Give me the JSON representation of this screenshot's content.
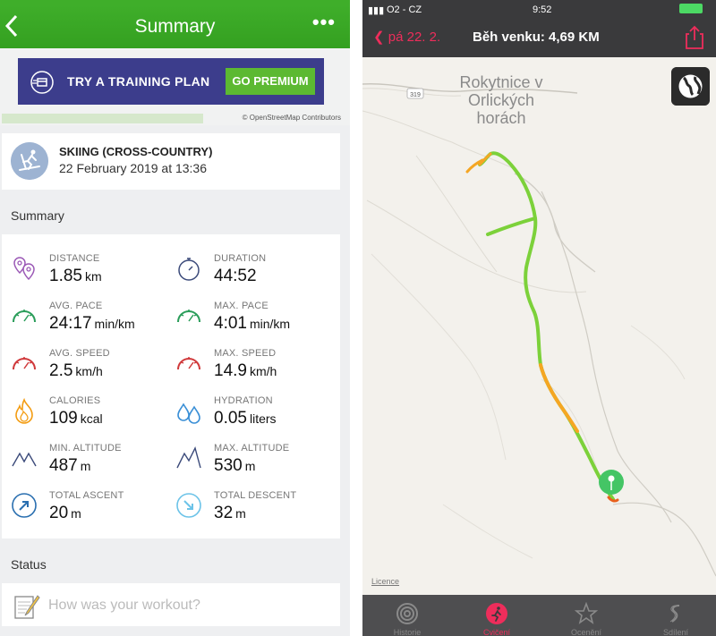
{
  "left": {
    "header": {
      "title": "Summary",
      "more_label": "•••"
    },
    "banner": {
      "text": "TRY A TRAINING PLAN",
      "button_label": "GO PREMIUM",
      "attribution": "© OpenStreetMap Contributors"
    },
    "activity": {
      "type": "SKIING (CROSS-COUNTRY)",
      "date": "22 February 2019 at 13:36"
    },
    "summary_title": "Summary",
    "stats": [
      {
        "label": "DISTANCE",
        "value": "1.85",
        "unit": "km",
        "icon": "location-pins-icon"
      },
      {
        "label": "DURATION",
        "value": "44:52",
        "unit": "",
        "icon": "stopwatch-icon"
      },
      {
        "label": "AVG. PACE",
        "value": "24:17",
        "unit": "min/km",
        "icon": "green-gauge-icon"
      },
      {
        "label": "MAX. PACE",
        "value": "4:01",
        "unit": "min/km",
        "icon": "green-gauge-icon"
      },
      {
        "label": "AVG. SPEED",
        "value": "2.5",
        "unit": "km/h",
        "icon": "red-gauge-icon"
      },
      {
        "label": "MAX. SPEED",
        "value": "14.9",
        "unit": "km/h",
        "icon": "red-gauge-icon"
      },
      {
        "label": "CALORIES",
        "value": "109",
        "unit": "kcal",
        "icon": "flame-icon"
      },
      {
        "label": "HYDRATION",
        "value": "0.05",
        "unit": "liters",
        "icon": "water-drops-icon"
      },
      {
        "label": "MIN. ALTITUDE",
        "value": "487",
        "unit": "m",
        "icon": "mountain-icon"
      },
      {
        "label": "MAX. ALTITUDE",
        "value": "530",
        "unit": "m",
        "icon": "mountain-icon"
      },
      {
        "label": "TOTAL ASCENT",
        "value": "20",
        "unit": "m",
        "icon": "ascent-arrow-icon"
      },
      {
        "label": "TOTAL DESCENT",
        "value": "32",
        "unit": "m",
        "icon": "descent-arrow-icon"
      }
    ],
    "status_title": "Status",
    "status_placeholder": "How was your workout?",
    "colors": {
      "header_green": "#3fae2a",
      "banner_blue": "#3c3d8c",
      "premium_green": "#5cb932"
    }
  },
  "right": {
    "status_bar": {
      "carrier": "O2 - CZ",
      "time": "9:52"
    },
    "header": {
      "back_label": "pá 22. 2.",
      "title": "Běh venku: 4,69 KM"
    },
    "map": {
      "town_line1": "Rokytnice v",
      "town_line2": "Orlických",
      "town_line3": "horách",
      "road_number": "319",
      "licence": "Licence"
    },
    "tabs": [
      {
        "label": "Historie",
        "icon": "rings-icon"
      },
      {
        "label": "Cvičení",
        "icon": "runner-icon"
      },
      {
        "label": "Ocenění",
        "icon": "star-award-icon"
      },
      {
        "label": "Sdílení",
        "icon": "sharing-icon"
      }
    ],
    "colors": {
      "accent_pink": "#ee2d5b",
      "route_green": "#7cd13a",
      "route_orange": "#f5a623"
    }
  }
}
